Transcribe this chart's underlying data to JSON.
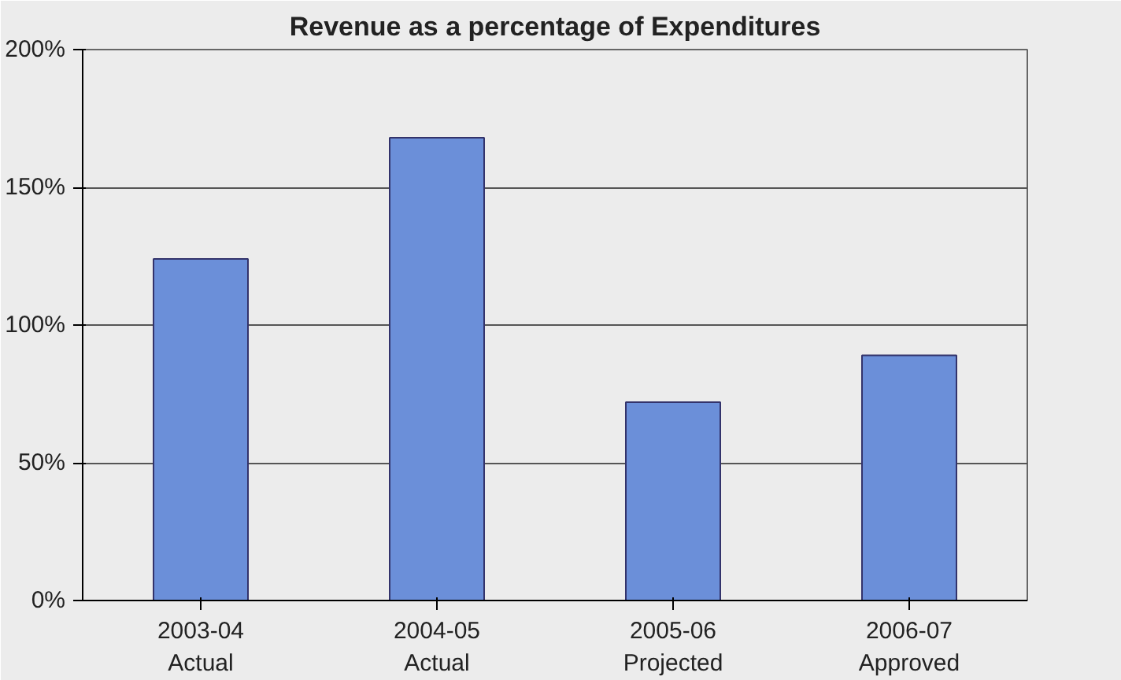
{
  "chart_data": {
    "type": "bar",
    "title": "Revenue as a percentage of Expenditures",
    "categories": [
      "2003-04\nActual",
      "2004-05\nActual",
      "2005-06\nProjected",
      "2006-07\nApproved"
    ],
    "values": [
      124,
      168,
      72,
      89
    ],
    "color": "#6b8fd9",
    "ylim": [
      0,
      200
    ],
    "yticks": [
      {
        "value": 0,
        "label": "0%"
      },
      {
        "value": 50,
        "label": "50%"
      },
      {
        "value": 100,
        "label": "100%"
      },
      {
        "value": 150,
        "label": "150%"
      },
      {
        "value": 200,
        "label": "200%"
      }
    ],
    "grid": "y"
  }
}
